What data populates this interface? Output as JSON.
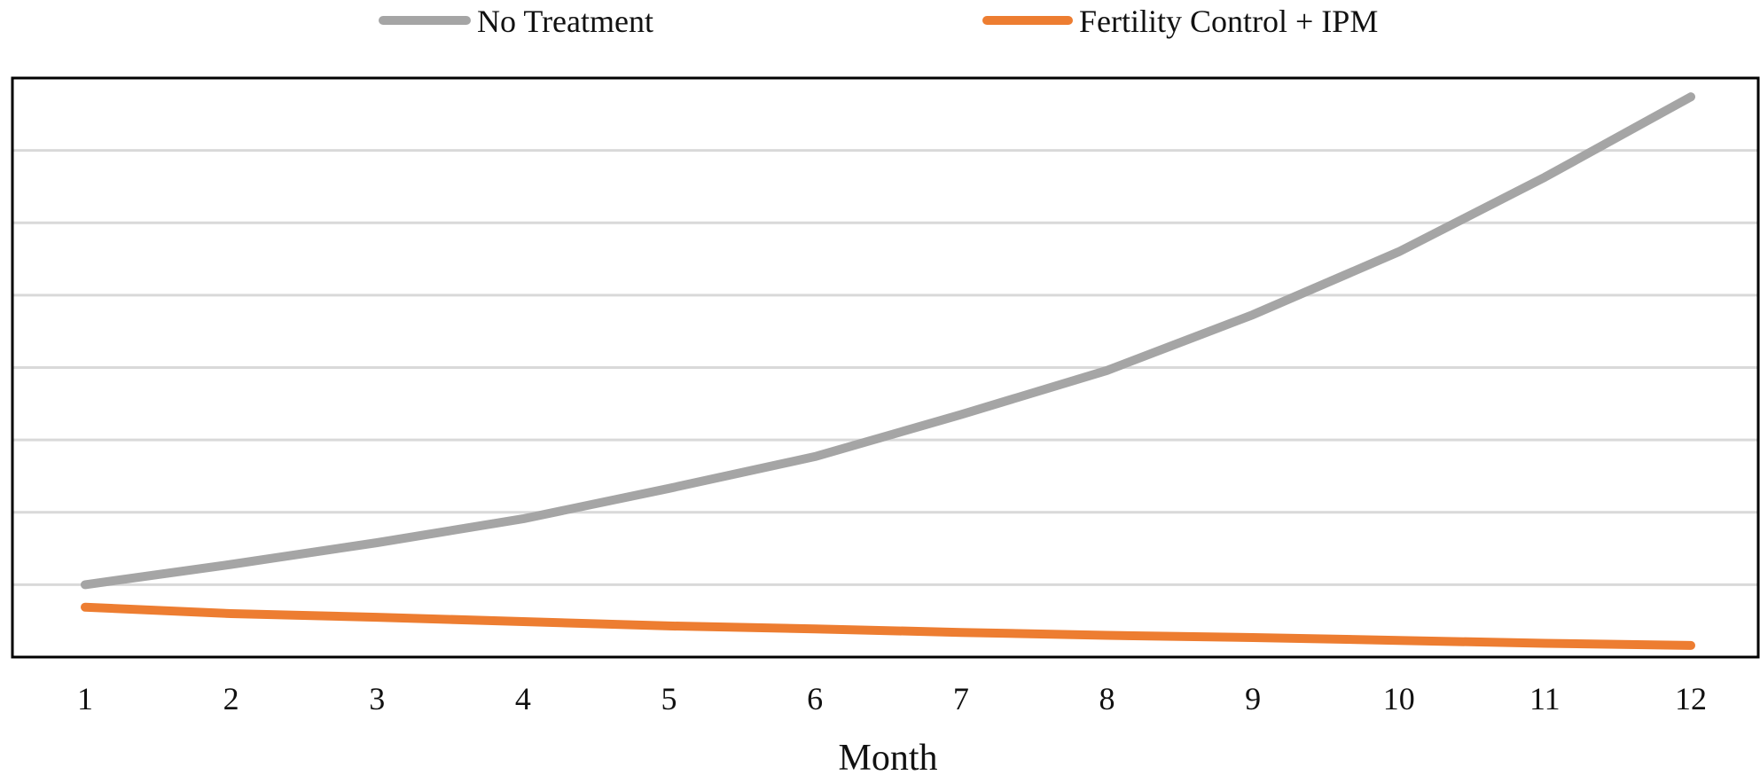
{
  "chart_data": {
    "type": "line",
    "title": "",
    "xlabel": "Month",
    "ylabel": "",
    "x": [
      1,
      2,
      3,
      4,
      5,
      6,
      7,
      8,
      9,
      10,
      11,
      12
    ],
    "x_tick_labels": [
      "1",
      "2",
      "3",
      "4",
      "5",
      "6",
      "7",
      "8",
      "9",
      "10",
      "11",
      "12"
    ],
    "ylim": [
      0,
      8
    ],
    "y_gridlines": [
      1,
      2,
      3,
      4,
      5,
      6,
      7
    ],
    "y_tick_labels_visible": false,
    "grid": true,
    "legend_position": "top",
    "series": [
      {
        "name": "No Treatment",
        "color": "#a5a5a5",
        "values": [
          1.0,
          1.28,
          1.58,
          1.91,
          2.33,
          2.77,
          3.35,
          3.96,
          4.73,
          5.6,
          6.63,
          7.74
        ]
      },
      {
        "name": "Fertility Control + IPM",
        "color": "#ed7d31",
        "values": [
          0.69,
          0.6,
          0.55,
          0.49,
          0.43,
          0.39,
          0.34,
          0.3,
          0.27,
          0.23,
          0.19,
          0.16
        ]
      }
    ]
  }
}
